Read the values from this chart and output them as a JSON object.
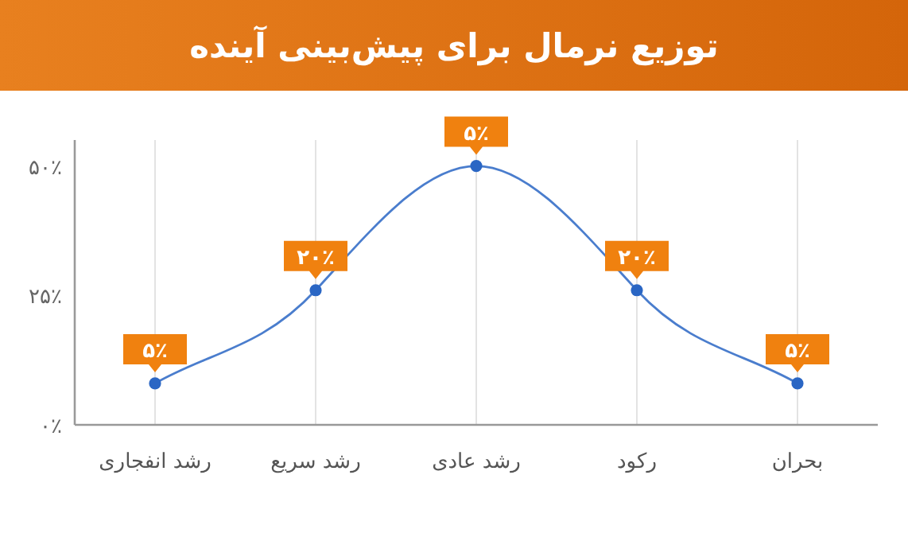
{
  "chart_data": {
    "type": "line",
    "title": "توزیع نرمال برای پیش‌بینی آینده",
    "categories": [
      "رشد انفجاری",
      "رشد سریع",
      "رشد عادی",
      "رکود",
      "بحران"
    ],
    "series": [
      {
        "color": "#2a66c4",
        "values": [
          8,
          26,
          50,
          26,
          8
        ]
      }
    ],
    "annotations": [
      {
        "text": "۵٪",
        "x": "رشد انفجاری",
        "y": 8
      },
      {
        "text": "۲۰٪",
        "x": "رشد سریع",
        "y": 26
      },
      {
        "text": "۵٪",
        "x": "رشد عادی",
        "y": 50
      },
      {
        "text": "۲۰٪",
        "x": "رکود",
        "y": 26
      },
      {
        "text": "۵٪",
        "x": "بحران",
        "y": 8
      }
    ],
    "ylim": [
      0,
      55
    ],
    "yticks": [
      {
        "value": 0,
        "label": "۰٪"
      },
      {
        "value": 25,
        "label": "۲۵٪"
      },
      {
        "value": 50,
        "label": "۵۰٪"
      }
    ],
    "grid": "x",
    "marker": "circle",
    "line_style": "solid"
  }
}
